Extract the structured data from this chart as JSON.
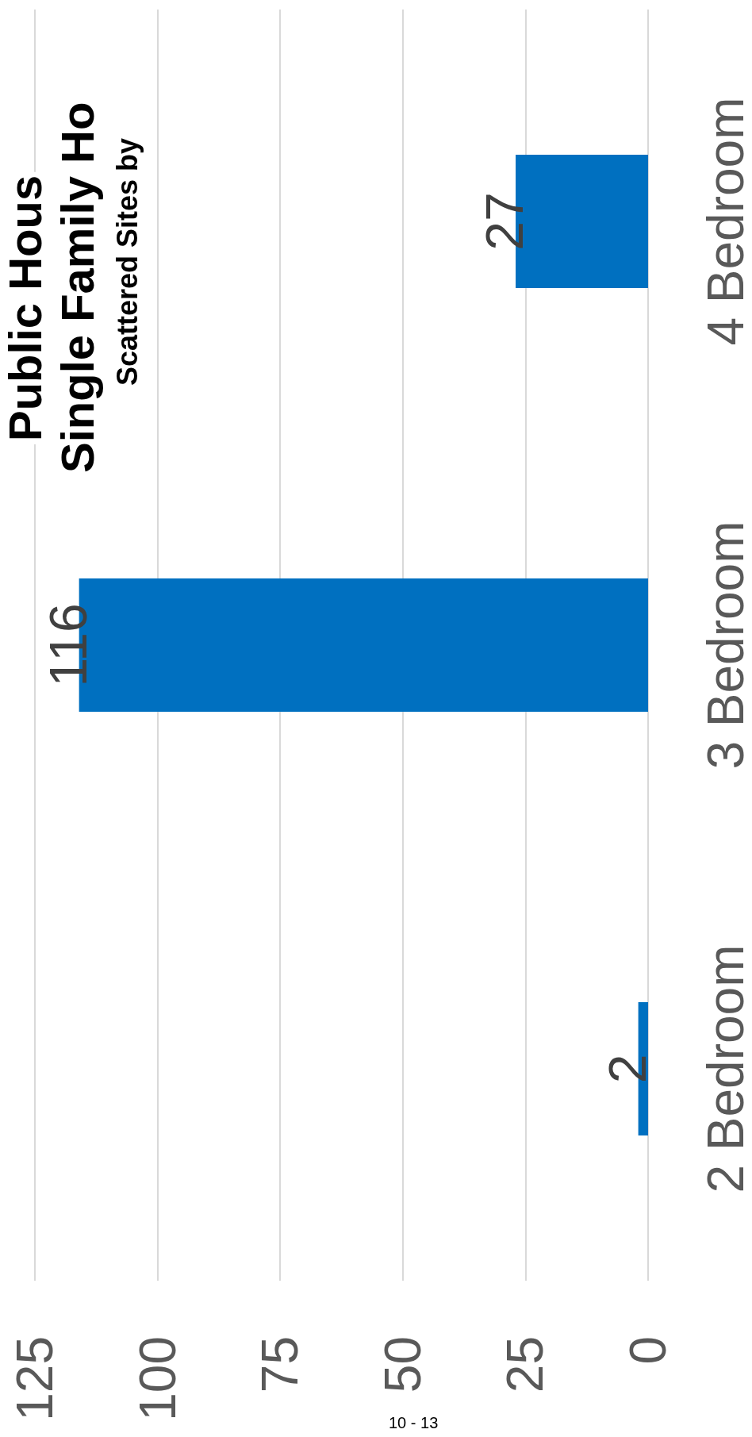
{
  "chart_data": {
    "type": "bar",
    "orientation": "horizontal",
    "title": "Public Hous\nSingle Family Ho",
    "subtitle": "Scattered Sites by",
    "categories": [
      "4 Bedroom",
      "3 Bedroom",
      "2 Bedroom"
    ],
    "values": [
      27,
      116,
      2
    ],
    "color": "#0070c0",
    "xlim": [
      125,
      0
    ],
    "xticks": [
      125,
      100,
      75,
      50,
      25,
      0
    ],
    "grid": "x",
    "data_labels": true,
    "annotations": [
      "10 - 13"
    ]
  }
}
